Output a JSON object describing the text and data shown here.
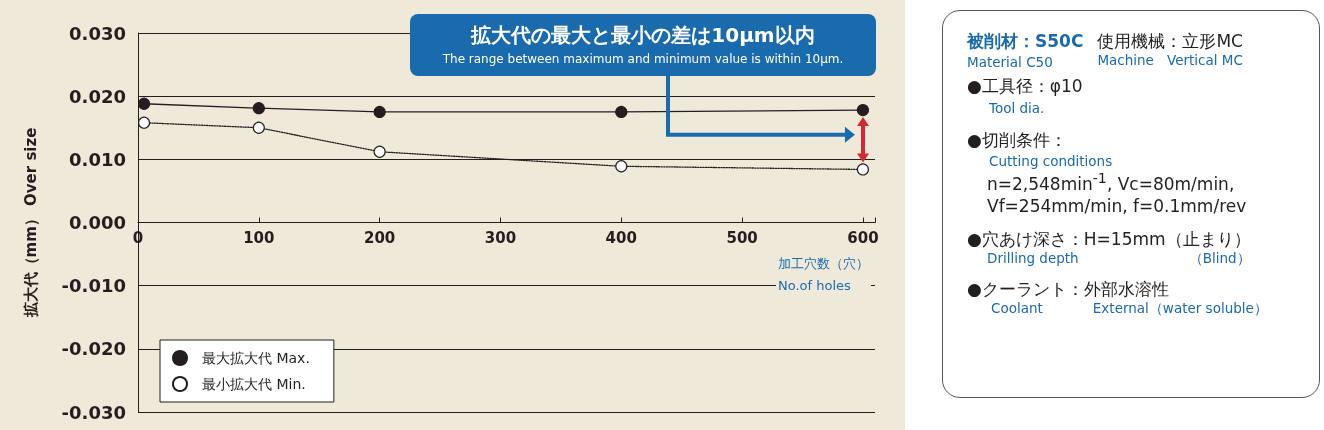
{
  "chart_data": [
    {
      "type": "line",
      "ylabel": "拡大代（mm） Over size",
      "xlabel": "加工穴数（穴）\nNo.of holes",
      "x": [
        5,
        100,
        200,
        400,
        600
      ],
      "series": [
        {
          "name": "最大拡大代 Max.",
          "color": "#231f20",
          "values": [
            0.0188,
            0.0181,
            0.0175,
            0.0175,
            0.0178
          ],
          "line_style": "solid",
          "marker": "circle"
        },
        {
          "name": "最小拡大代 Min.",
          "color": "#231f20",
          "values": [
            0.0158,
            0.015,
            0.0112,
            0.0089,
            0.0084
          ],
          "line_style": "dotted",
          "marker": "circle"
        }
      ],
      "xlim": [
        0,
        610
      ],
      "xticks": [
        0,
        100,
        200,
        300,
        400,
        500,
        600
      ],
      "ylim": [
        -0.03,
        0.03
      ],
      "yticks": [
        {
          "value": -0.03,
          "label": "-0.030"
        },
        {
          "value": -0.02,
          "label": "-0.020"
        },
        {
          "value": -0.01,
          "label": "-0.010"
        },
        {
          "value": 0,
          "label": "0.000"
        },
        {
          "value": 0.01,
          "label": "0.010"
        },
        {
          "value": 0.02,
          "label": "0.020"
        },
        {
          "value": 0.03,
          "label": "0.030"
        }
      ],
      "grid": "y",
      "legend": "bottom left",
      "annotations": [
        "拡大代の最大と最小の差は10μm以内",
        "The range between maximum and minimum value is within 10μm."
      ]
    },
    {
      "type": "other",
      "annotations": [
        "被削材：S50C",
        "Material C50",
        "使用機械：立形MC",
        "Machine",
        "Vertical MC",
        "●工具径：φ10",
        "Tool dia.",
        "●切削条件：",
        "Cutting conditions",
        "n=2,548min$^{-1}$, Vc=80m/min,",
        "Vf=254mm/min, f=0.1mm/rev",
        "●穴あけ深さ：H=15mm（止まり）",
        "Drilling depth",
        "（Blind）",
        "●クーラント：外部水溶性",
        "Coolant",
        "External（water soluble）"
      ]
    }
  ]
}
